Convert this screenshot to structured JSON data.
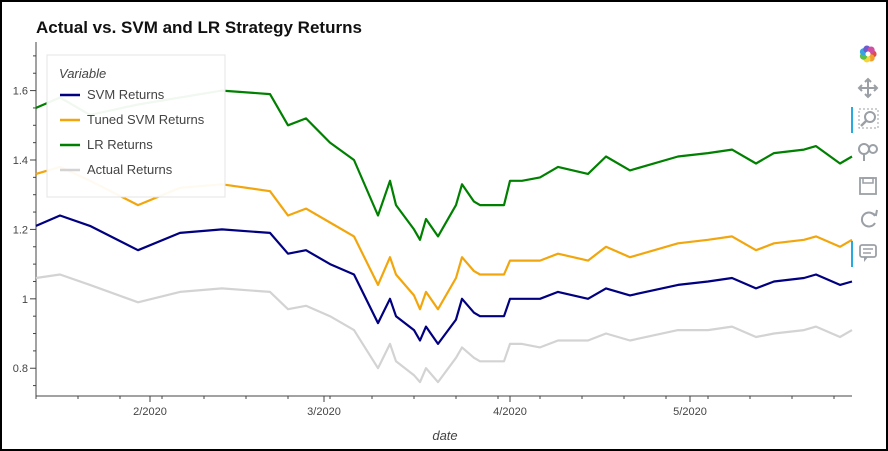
{
  "chart_data": {
    "type": "line",
    "title": "Actual vs. SVM and LR Strategy Returns",
    "xlabel": "date",
    "ylabel": "",
    "x_ticks": [
      "2/2020",
      "3/2020",
      "4/2020",
      "5/2020"
    ],
    "y_ticks": [
      "0.8",
      "1",
      "1.2",
      "1.4",
      "1.6"
    ],
    "ylim": [
      0.72,
      1.74
    ],
    "xlim": [
      "2020-01-13",
      "2020-05-28"
    ],
    "grid": false,
    "legend": {
      "title": "Variable",
      "position": "top-left"
    },
    "x": [
      "2020-01-13",
      "2020-01-17",
      "2020-01-22",
      "2020-01-30",
      "2020-02-06",
      "2020-02-13",
      "2020-02-21",
      "2020-02-24",
      "2020-02-27",
      "2020-03-02",
      "2020-03-06",
      "2020-03-10",
      "2020-03-12",
      "2020-03-13",
      "2020-03-16",
      "2020-03-17",
      "2020-03-18",
      "2020-03-20",
      "2020-03-23",
      "2020-03-24",
      "2020-03-26",
      "2020-03-27",
      "2020-03-31",
      "2020-04-01",
      "2020-04-03",
      "2020-04-06",
      "2020-04-09",
      "2020-04-14",
      "2020-04-17",
      "2020-04-21",
      "2020-04-29",
      "2020-05-04",
      "2020-05-08",
      "2020-05-12",
      "2020-05-15",
      "2020-05-20",
      "2020-05-22",
      "2020-05-26",
      "2020-05-28"
    ],
    "series": [
      {
        "name": "SVM Returns",
        "color": "#000080",
        "values": [
          1.21,
          1.24,
          1.21,
          1.14,
          1.19,
          1.2,
          1.19,
          1.13,
          1.14,
          1.1,
          1.07,
          0.93,
          1.0,
          0.95,
          0.91,
          0.88,
          0.92,
          0.87,
          0.94,
          1.0,
          0.96,
          0.95,
          0.95,
          1.0,
          1.0,
          1.0,
          1.02,
          1.0,
          1.03,
          1.01,
          1.04,
          1.05,
          1.06,
          1.03,
          1.05,
          1.06,
          1.07,
          1.04,
          1.05
        ]
      },
      {
        "name": "Tuned SVM Returns",
        "color": "#f2a60d",
        "values": [
          1.36,
          1.38,
          1.34,
          1.27,
          1.32,
          1.33,
          1.31,
          1.24,
          1.26,
          1.22,
          1.18,
          1.04,
          1.12,
          1.07,
          1.01,
          0.97,
          1.02,
          0.97,
          1.06,
          1.12,
          1.08,
          1.07,
          1.07,
          1.11,
          1.11,
          1.11,
          1.13,
          1.11,
          1.15,
          1.12,
          1.16,
          1.17,
          1.18,
          1.14,
          1.16,
          1.17,
          1.18,
          1.15,
          1.17
        ]
      },
      {
        "name": "LR Returns",
        "color": "#008000",
        "values": [
          1.55,
          1.58,
          1.53,
          1.56,
          1.58,
          1.6,
          1.59,
          1.5,
          1.52,
          1.45,
          1.4,
          1.24,
          1.34,
          1.27,
          1.2,
          1.17,
          1.23,
          1.18,
          1.27,
          1.33,
          1.28,
          1.27,
          1.27,
          1.34,
          1.34,
          1.35,
          1.38,
          1.36,
          1.41,
          1.37,
          1.41,
          1.42,
          1.43,
          1.39,
          1.42,
          1.43,
          1.44,
          1.39,
          1.41
        ]
      },
      {
        "name": "Actual Returns",
        "color": "#d3d3d3",
        "values": [
          1.06,
          1.07,
          1.04,
          0.99,
          1.02,
          1.03,
          1.02,
          0.97,
          0.98,
          0.95,
          0.91,
          0.8,
          0.87,
          0.82,
          0.78,
          0.76,
          0.8,
          0.76,
          0.83,
          0.86,
          0.83,
          0.82,
          0.82,
          0.87,
          0.87,
          0.86,
          0.88,
          0.88,
          0.9,
          0.88,
          0.91,
          0.91,
          0.92,
          0.89,
          0.9,
          0.91,
          0.92,
          0.89,
          0.91
        ]
      }
    ]
  },
  "toolbar": {
    "items": [
      {
        "name": "bokeh-logo",
        "icon": "bokeh-logo"
      },
      {
        "name": "pan-tool",
        "icon": "pan-icon"
      },
      {
        "name": "box-zoom-tool",
        "icon": "zoom-icon",
        "active": true
      },
      {
        "name": "wheel-zoom-tool",
        "icon": "wheel-zoom-icon"
      },
      {
        "name": "save-tool",
        "icon": "save-icon"
      },
      {
        "name": "reset-tool",
        "icon": "reset-icon"
      },
      {
        "name": "hover-tool",
        "icon": "hover-icon",
        "active": true
      }
    ]
  },
  "colors": {
    "accent": "#26aae1",
    "axis": "#444444"
  }
}
